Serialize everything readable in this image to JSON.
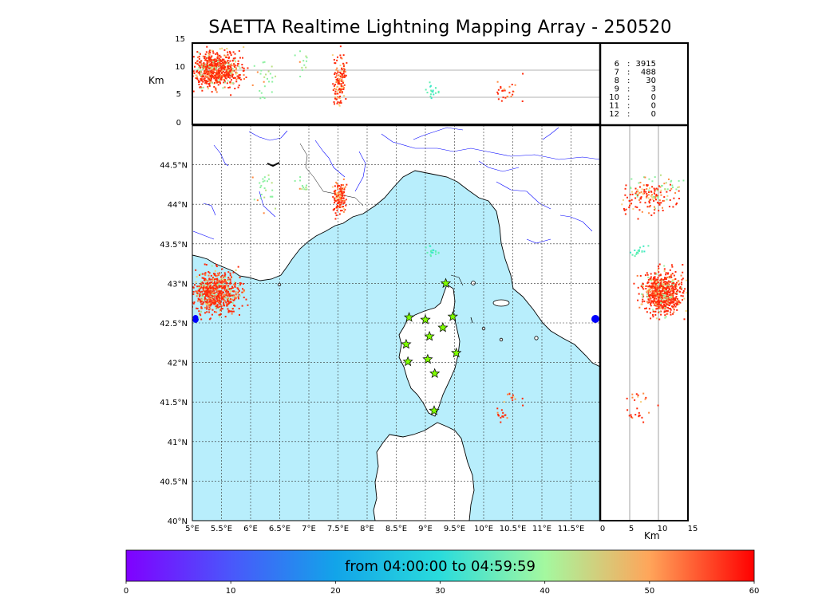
{
  "title": "SAETTA Realtime Lightning Mapping Array - 250520",
  "altitude_panel": {
    "ylabel": "Km",
    "yticks": [
      "15",
      "10",
      "5",
      "0"
    ]
  },
  "side_panel": {
    "xlabel": "Km",
    "xticks": [
      "0",
      "5",
      "10",
      "15"
    ]
  },
  "station_counts": [
    {
      "stations": "6",
      "count": "3915",
      "color": "#ff0000"
    },
    {
      "stations": "7",
      "count": "488",
      "color": "#000000"
    },
    {
      "stations": "8",
      "count": "30",
      "color": "#000000"
    },
    {
      "stations": "9",
      "count": "3",
      "color": "#000000"
    },
    {
      "stations": "10",
      "count": "0",
      "color": "#000000"
    },
    {
      "stations": "11",
      "count": "0",
      "color": "#000000"
    },
    {
      "stations": "12",
      "count": "0",
      "color": "#000000"
    }
  ],
  "map": {
    "lon_ticks": [
      "5°E",
      "5.5°E",
      "6°E",
      "6.5°E",
      "7°E",
      "7.5°E",
      "8°E",
      "8.5°E",
      "9°E",
      "9.5°E",
      "10°E",
      "10.5°E",
      "11°E",
      "11.5°E"
    ],
    "lat_ticks": [
      "44.5°N",
      "44°N",
      "43.5°N",
      "43°N",
      "42.5°N",
      "42°N",
      "41.5°N",
      "41°N",
      "40.5°N",
      "40°N"
    ],
    "lon_range": [
      5,
      12
    ],
    "lat_range": [
      40,
      45
    ],
    "sea_color": "#b8eefc",
    "land_color": "#ffffff",
    "river_color": "#0000ff",
    "station_color": "#7fff00",
    "stations": [
      {
        "lon": 9.35,
        "lat": 43.0
      },
      {
        "lon": 8.72,
        "lat": 42.57
      },
      {
        "lon": 9.0,
        "lat": 42.54
      },
      {
        "lon": 9.47,
        "lat": 42.58
      },
      {
        "lon": 9.3,
        "lat": 42.44
      },
      {
        "lon": 8.67,
        "lat": 42.23
      },
      {
        "lon": 9.07,
        "lat": 42.33
      },
      {
        "lon": 9.53,
        "lat": 42.12
      },
      {
        "lon": 8.7,
        "lat": 42.01
      },
      {
        "lon": 9.04,
        "lat": 42.04
      },
      {
        "lon": 9.16,
        "lat": 41.86
      },
      {
        "lon": 9.15,
        "lat": 41.39
      }
    ],
    "clusters": [
      {
        "lon": 5.4,
        "lat": 42.88,
        "sx": 0.2,
        "sy": 0.13,
        "n": 700,
        "alt": 10,
        "alt_sd": 1.6,
        "kind": "main"
      },
      {
        "lon": 7.53,
        "lat": 44.07,
        "sx": 0.05,
        "sy": 0.1,
        "n": 140,
        "alt": 8,
        "alt_sd": 2.2,
        "kind": "hot"
      },
      {
        "lon": 6.25,
        "lat": 44.2,
        "sx": 0.1,
        "sy": 0.12,
        "n": 25,
        "alt": 8.5,
        "alt_sd": 1.5,
        "kind": "green"
      },
      {
        "lon": 6.9,
        "lat": 44.25,
        "sx": 0.05,
        "sy": 0.05,
        "n": 12,
        "alt": 11,
        "alt_sd": 1.2,
        "kind": "green"
      },
      {
        "lon": 9.1,
        "lat": 43.4,
        "sx": 0.07,
        "sy": 0.04,
        "n": 18,
        "alt": 6,
        "alt_sd": 1,
        "kind": "cyan"
      },
      {
        "lon": 10.3,
        "lat": 41.32,
        "sx": 0.06,
        "sy": 0.04,
        "n": 15,
        "alt": 6,
        "alt_sd": 1,
        "kind": "hot"
      },
      {
        "lon": 10.55,
        "lat": 41.55,
        "sx": 0.08,
        "sy": 0.04,
        "n": 12,
        "alt": 6.5,
        "alt_sd": 1.2,
        "kind": "hot"
      }
    ]
  },
  "colorbar": {
    "label": "from 04:00:00 to 04:59:59",
    "ticks": [
      "0",
      "10",
      "20",
      "30",
      "40",
      "50",
      "60"
    ],
    "range": [
      0,
      60
    ],
    "colormap": "rainbow"
  }
}
